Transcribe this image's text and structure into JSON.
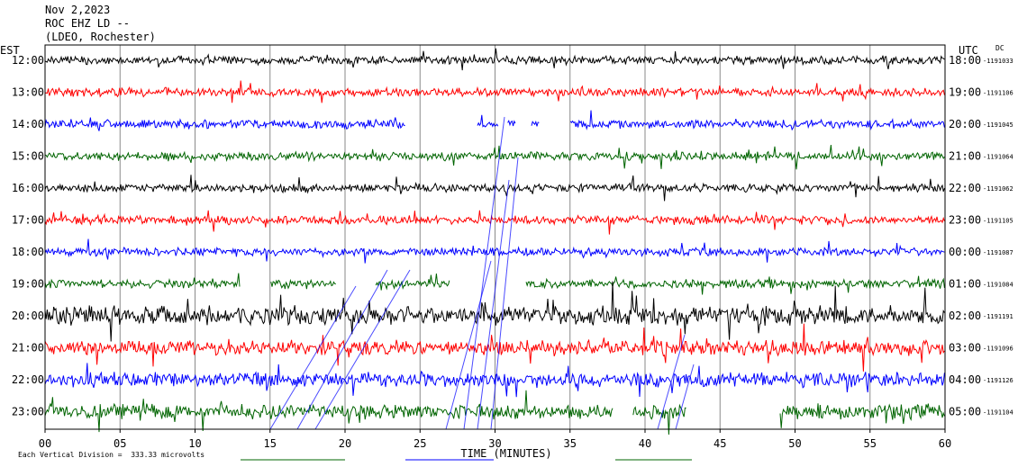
{
  "header": {
    "date": "Nov 2,2023",
    "station": "ROC EHZ LD --",
    "network": "(LDEO, Rochester)"
  },
  "chart_data": {
    "type": "line",
    "title": "Nov 2,2023",
    "left_axis_label": "EST",
    "right_axis_label": "UTC",
    "dc_label": "DC",
    "xlabel": "TIME (MINUTES)",
    "xlim": [
      0,
      60
    ],
    "x_ticks": [
      "00",
      "05",
      "10",
      "15",
      "20",
      "25",
      "30",
      "35",
      "40",
      "45",
      "50",
      "55",
      "60"
    ],
    "scale_note": "Each Vertical Division =  333.33 microvolts",
    "trace_colors": [
      "#000000",
      "#ff0000",
      "#0000ff",
      "#006400"
    ],
    "rows": [
      {
        "est": "12:00",
        "utc": "18:00",
        "dc": "-1191033"
      },
      {
        "est": "13:00",
        "utc": "19:00",
        "dc": "-1191106"
      },
      {
        "est": "14:00",
        "utc": "20:00",
        "dc": "-1191045"
      },
      {
        "est": "15:00",
        "utc": "21:00",
        "dc": "-1191064"
      },
      {
        "est": "16:00",
        "utc": "22:00",
        "dc": "-1191062"
      },
      {
        "est": "17:00",
        "utc": "23:00",
        "dc": "-1191105"
      },
      {
        "est": "18:00",
        "utc": "00:00",
        "dc": "-1191087"
      },
      {
        "est": "19:00",
        "utc": "01:00",
        "dc": "-1191084"
      },
      {
        "est": "20:00",
        "utc": "02:00",
        "dc": "-1191191"
      },
      {
        "est": "21:00",
        "utc": "03:00",
        "dc": "-1191096"
      },
      {
        "est": "22:00",
        "utc": "04:00",
        "dc": "-1191126"
      },
      {
        "est": "23:00",
        "utc": "05:00",
        "dc": "-1191104"
      }
    ]
  }
}
